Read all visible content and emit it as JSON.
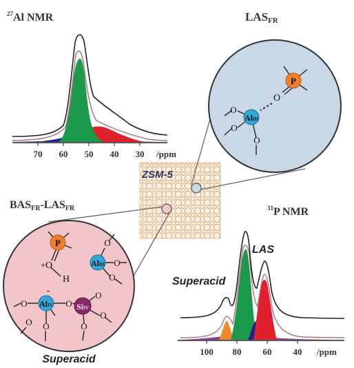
{
  "top_left_spectrum": {
    "title_sup": "27",
    "title_main": "Al NMR",
    "ticks": [
      "70",
      "60",
      "50",
      "40",
      "30"
    ],
    "unit": "/ppm"
  },
  "top_right_circle": {
    "title_main": "LAS",
    "title_sub": "FR",
    "atom_p": "P",
    "atom_al": "Al",
    "atom_al_sub": "III",
    "oxygen": "O"
  },
  "center": {
    "label": "ZSM-5"
  },
  "left_circle": {
    "title_a": "BAS",
    "title_a_sub": "FR",
    "title_sep": "-LAS",
    "title_b_sub": "FR",
    "atom_p": "P",
    "atom_al3": "Al",
    "atom_al3_sub": "III",
    "atom_al4": "Al",
    "atom_al4_sub": "IV",
    "atom_si": "Si",
    "atom_si_sub": "IV",
    "oxygen": "O",
    "hydrogen": "H",
    "plus": "+",
    "minus": "-",
    "caption": "Superacid"
  },
  "bottom_right_spectrum": {
    "title_sup": "31",
    "title_main": "P NMR",
    "label_las": "LAS",
    "label_superacid": "Superacid",
    "ticks": [
      "100",
      "80",
      "60",
      "40"
    ],
    "unit": "/ppm"
  },
  "colors": {
    "green": "#1a9a4a",
    "red": "#e0202a",
    "navy": "#2a1d8c",
    "purple": "#8a3a9a",
    "orange": "#f0882a",
    "circle_blue": "#c9d8e6",
    "circle_pink": "#f2c6c8",
    "framework": "#d9a06a"
  }
}
